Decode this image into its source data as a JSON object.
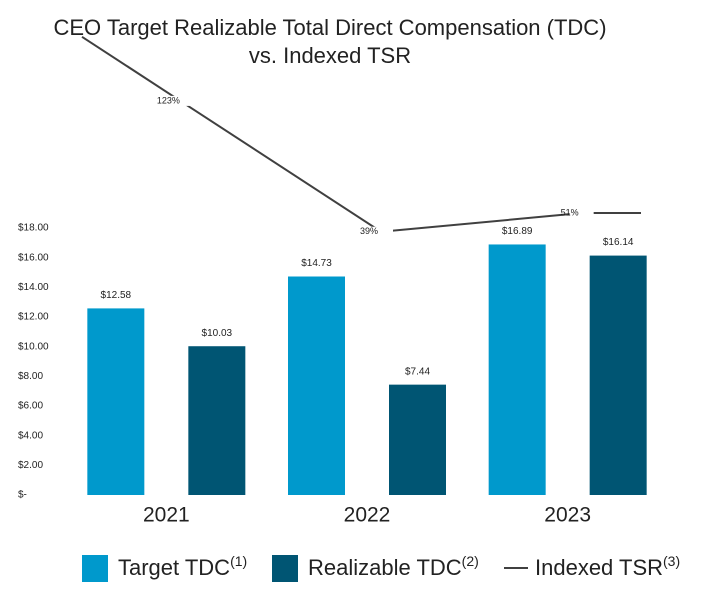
{
  "chart_data": {
    "type": "bar",
    "title": [
      "CEO Target Realizable Total Direct Compensation (TDC)",
      "vs. Indexed TSR"
    ],
    "categories": [
      "2021",
      "2022",
      "2023"
    ],
    "series": [
      {
        "name": "Target TDC",
        "footnote": "(1)",
        "color": "#0099cc",
        "values": [
          12.58,
          14.73,
          16.89
        ],
        "value_labels": [
          "$12.58",
          "$14.73",
          "$16.89"
        ]
      },
      {
        "name": "Realizable TDC",
        "footnote": "(2)",
        "color": "#005573",
        "values": [
          10.03,
          7.44,
          16.14
        ],
        "value_labels": [
          "$10.03",
          "$7.44",
          "$16.14"
        ]
      },
      {
        "name": "Indexed TSR",
        "footnote": "(3)",
        "type": "line",
        "axis": "y2",
        "color": "#404040",
        "values": [
          123,
          39,
          51
        ],
        "value_labels": [
          "123%",
          "39%",
          "51%"
        ]
      }
    ],
    "ylim": [
      0,
      18
    ],
    "yticks": [
      {
        "value": 0,
        "label": "$-"
      },
      {
        "value": 2,
        "label": "$2.00"
      },
      {
        "value": 4,
        "label": "$4.00"
      },
      {
        "value": 6,
        "label": "$6.00"
      },
      {
        "value": 8,
        "label": "$8.00"
      },
      {
        "value": 10,
        "label": "$10.00"
      },
      {
        "value": 12,
        "label": "$12.00"
      },
      {
        "value": 14,
        "label": "$14.00"
      },
      {
        "value": 16,
        "label": "$16.00"
      },
      {
        "value": 18,
        "label": "$18.00"
      }
    ],
    "y2lim": [
      -130,
      130
    ],
    "grid": false,
    "legend": "bottom"
  }
}
